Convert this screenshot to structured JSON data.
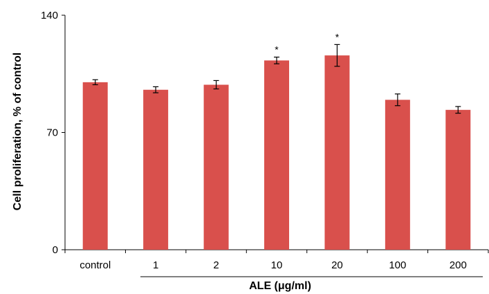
{
  "chart_data": {
    "type": "bar",
    "categories": [
      "control",
      "1",
      "2",
      "10",
      "20",
      "100",
      "200"
    ],
    "values": [
      100,
      95.5,
      98.5,
      113,
      116,
      89.5,
      83.5
    ],
    "errors": [
      1.5,
      1.8,
      2.5,
      2.0,
      6.5,
      3.5,
      2.0
    ],
    "annotations": [
      "",
      "",
      "",
      "*",
      "*",
      "",
      ""
    ],
    "ylabel": "Cell proliferation, % of control",
    "xlabel": "ALE (μg/ml)",
    "ylim": [
      0,
      140
    ],
    "yticks": [
      "0",
      "70",
      "140"
    ],
    "bar_color": "#d9504c",
    "grid": false,
    "legend": "none"
  }
}
